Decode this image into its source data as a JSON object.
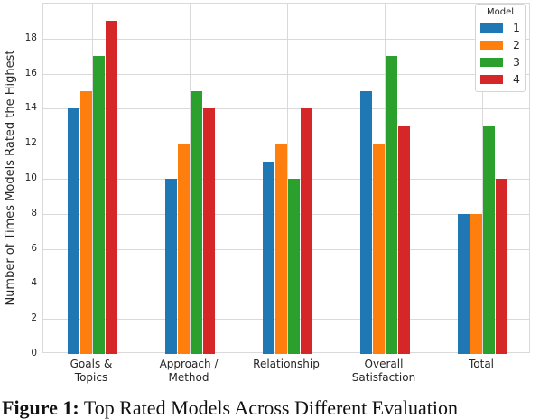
{
  "chart_data": {
    "type": "bar",
    "title": "",
    "xlabel": "",
    "ylabel": "Number of Times Models Rated the Highest",
    "categories": [
      "Goals &\nTopics",
      "Approach /\nMethod",
      "Relationship",
      "Overall\nSatisfaction",
      "Total"
    ],
    "series": [
      {
        "name": "1",
        "color": "#1f77b4",
        "values": [
          14,
          10,
          11,
          15,
          8
        ]
      },
      {
        "name": "2",
        "color": "#ff7f0e",
        "values": [
          15,
          12,
          12,
          12,
          8
        ]
      },
      {
        "name": "3",
        "color": "#2ca02c",
        "values": [
          17,
          15,
          10,
          17,
          13
        ]
      },
      {
        "name": "4",
        "color": "#d62728",
        "values": [
          19,
          14,
          14,
          13,
          10
        ]
      }
    ],
    "ylim": [
      0,
      20
    ],
    "yticks": [
      0,
      2,
      4,
      6,
      8,
      10,
      12,
      14,
      16,
      18
    ],
    "grid": true,
    "gridline_color": "#d9d9d9",
    "legend": {
      "title": "Model",
      "position": "upper right"
    }
  },
  "caption": {
    "prefix": "Figure 1:",
    "text": " Top Rated Models Across Different Evaluation"
  }
}
